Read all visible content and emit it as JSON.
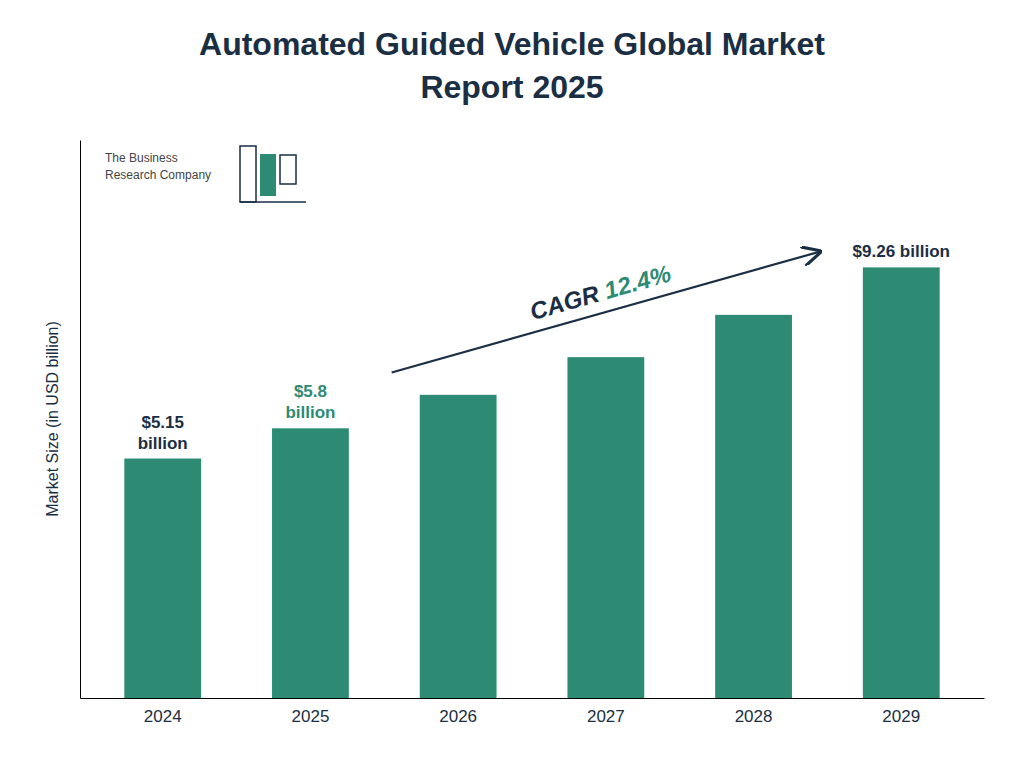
{
  "chart_data": {
    "type": "bar",
    "title": "Automated Guided Vehicle Global Market",
    "subtitle": "Report 2025",
    "y_label": "Market Size (in USD billion)",
    "categories": [
      "2024",
      "2025",
      "2026",
      "2027",
      "2028",
      "2029"
    ],
    "values": [
      5.15,
      5.8,
      6.52,
      7.33,
      8.24,
      9.26
    ],
    "color": "#2d8b74",
    "ylim": [
      0,
      12.0
    ],
    "tick_labels": "x",
    "grid": false,
    "annotations": [
      {
        "text": "$5.15\nbillion",
        "category": "2024",
        "color": "#1a2e44"
      },
      {
        "text": "$5.8\nbillion",
        "category": "2025",
        "color": "#2d8b74"
      },
      {
        "text": "$9.26 billion",
        "category": "2029",
        "color": "#1a2e44"
      }
    ],
    "cagr": [
      {
        "text": "CAGR ",
        "color": "#1a2e44"
      },
      {
        "text": "12.4%",
        "color": "#2d8b74"
      }
    ],
    "logo": {
      "text": "The Business\nResearch Company",
      "color": "#444444"
    }
  }
}
